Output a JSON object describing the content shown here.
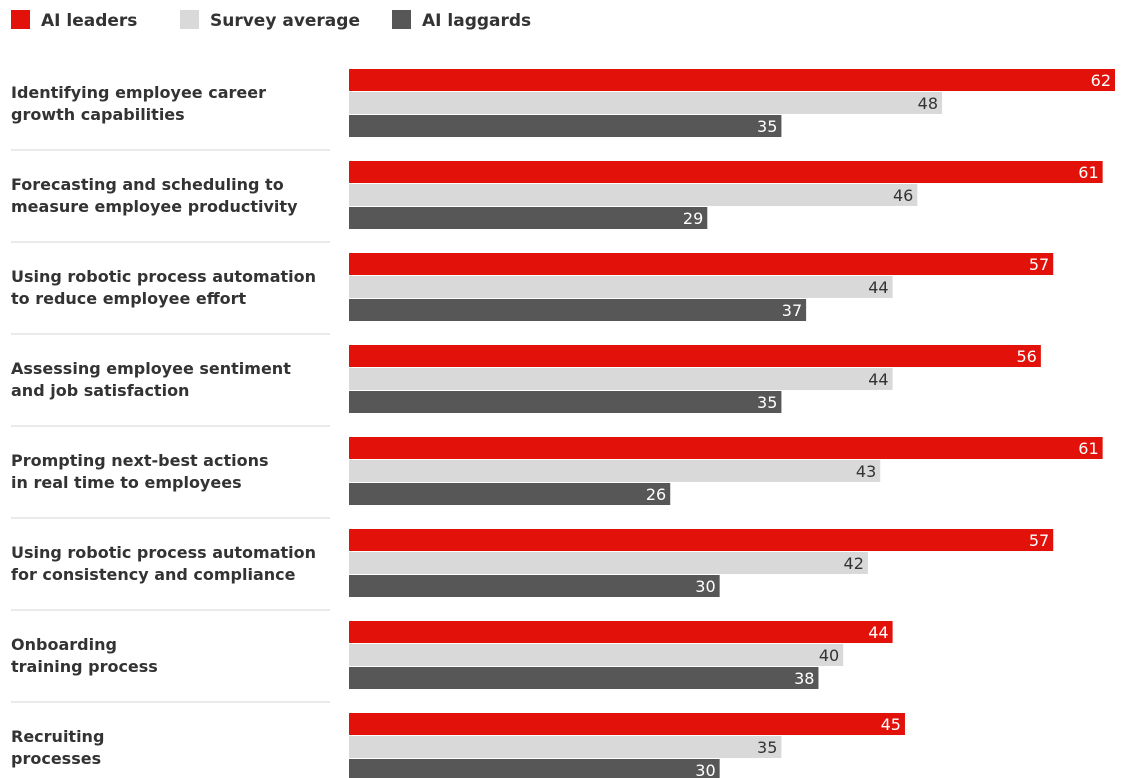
{
  "legend": [
    {
      "label": "AI leaders",
      "color": "#e2120b"
    },
    {
      "label": "Survey average",
      "color": "#d9d9d9"
    },
    {
      "label": "AI laggards",
      "color": "#575757"
    }
  ],
  "chart_data": {
    "type": "bar",
    "orientation": "horizontal",
    "legend_position": "top-left",
    "grid": false,
    "xlim": [
      0,
      62
    ],
    "categories": [
      [
        "Identifying employee career",
        "growth capabilities"
      ],
      [
        "Forecasting and scheduling to",
        "measure employee productivity"
      ],
      [
        "Using robotic process automation",
        "to reduce employee effort"
      ],
      [
        "Assessing employee sentiment",
        "and job satisfaction"
      ],
      [
        "Prompting next-best actions",
        "in real time to employees"
      ],
      [
        "Using robotic process automation",
        "for consistency and compliance"
      ],
      [
        "Onboarding",
        "training process"
      ],
      [
        "Recruiting",
        "processes"
      ]
    ],
    "series": [
      {
        "name": "AI leaders",
        "color": "#e2120b",
        "label_color": "#ffffff",
        "values": [
          62,
          61,
          57,
          56,
          61,
          57,
          44,
          45
        ]
      },
      {
        "name": "Survey average",
        "color": "#d9d9d9",
        "label_color": "#333333",
        "values": [
          48,
          46,
          44,
          44,
          43,
          42,
          40,
          35
        ]
      },
      {
        "name": "AI laggards",
        "color": "#575757",
        "label_color": "#ffffff",
        "values": [
          35,
          29,
          37,
          35,
          26,
          30,
          38,
          30
        ]
      }
    ]
  }
}
